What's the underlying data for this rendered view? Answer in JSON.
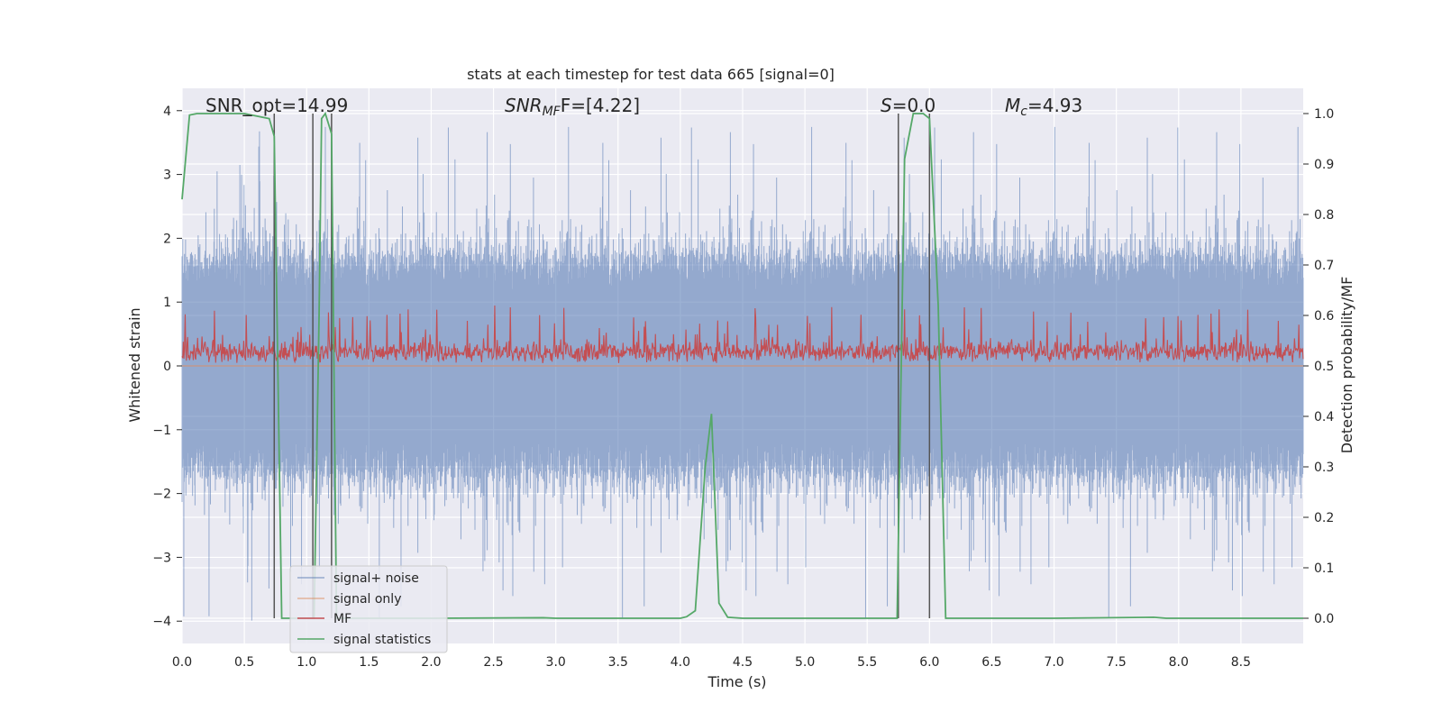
{
  "chart_data": {
    "type": "line",
    "title": "stats at each timestep for test data 665 [signal=0]",
    "xlabel": "Time (s)",
    "ylabel": "Whitened strain",
    "y2label": "Detection probability/MF",
    "xlim": [
      0.0,
      9.0
    ],
    "ylim": [
      -4.35,
      4.35
    ],
    "y2lim": [
      -0.05,
      1.05
    ],
    "xticks": [
      "0.0",
      "0.5",
      "1.0",
      "1.5",
      "2.0",
      "2.5",
      "3.0",
      "3.5",
      "4.0",
      "4.5",
      "5.0",
      "5.5",
      "6.0",
      "6.5",
      "7.0",
      "7.5",
      "8.0",
      "8.5"
    ],
    "yticks": [
      "−4",
      "−3",
      "−2",
      "−1",
      "0",
      "1",
      "2",
      "3",
      "4"
    ],
    "y2ticks": [
      "0.0",
      "0.1",
      "0.2",
      "0.3",
      "0.4",
      "0.5",
      "0.6",
      "0.7",
      "0.8",
      "0.9",
      "1.0"
    ],
    "grid": true,
    "legend_position": "lower-left",
    "annotations": {
      "snr_opt": "SNR_opt=14.99",
      "snr_mf_main": "SNR",
      "snr_mf_sub": "MF",
      "snr_mf_value": "F=[4.22]",
      "s_main": "S",
      "s_value": "=0.0",
      "mc_main": "M",
      "mc_sub": "c",
      "mc_value": "=4.93"
    },
    "series": [
      {
        "name": "signal+ noise",
        "color": "#4c72b0",
        "axis": "left",
        "style": "noise",
        "typical_range": [
          -1.6,
          1.6
        ],
        "extreme_range": [
          -4.0,
          3.9
        ]
      },
      {
        "name": "signal only",
        "color": "#dd8452",
        "axis": "left",
        "x": [
          0.0,
          9.0
        ],
        "y": [
          0.0,
          0.0
        ]
      },
      {
        "name": "MF",
        "color": "#c44e52",
        "axis": "right",
        "style": "noise",
        "range": [
          0.5,
          0.62
        ]
      },
      {
        "name": "signal statistics",
        "color": "#55a868",
        "axis": "right",
        "x": [
          0.0,
          0.06,
          0.12,
          0.5,
          0.7,
          0.74,
          0.8,
          1.0,
          1.06,
          1.1,
          1.12,
          1.15,
          1.2,
          1.24,
          1.3,
          2.0,
          2.9,
          3.0,
          4.0,
          4.05,
          4.12,
          4.2,
          4.25,
          4.31,
          4.38,
          4.5,
          5.74,
          5.8,
          5.87,
          5.95,
          6.0,
          6.07,
          6.13,
          6.18,
          7.0,
          7.8,
          7.9,
          9.0
        ],
        "y": [
          0.83,
          0.997,
          1.0,
          1.0,
          0.99,
          0.955,
          0.0,
          0.0,
          0.0,
          0.6,
          0.99,
          1.0,
          0.96,
          0.0,
          0.0,
          0.0,
          0.001,
          0.0,
          0.0,
          0.003,
          0.015,
          0.3,
          0.405,
          0.03,
          0.002,
          0.0,
          0.0,
          0.91,
          1.0,
          1.0,
          0.99,
          0.62,
          0.0,
          0.0,
          0.0,
          0.002,
          0.0,
          0.0
        ]
      }
    ],
    "vlines": [
      0.74,
      1.05,
      1.2,
      5.75,
      6.0
    ]
  }
}
